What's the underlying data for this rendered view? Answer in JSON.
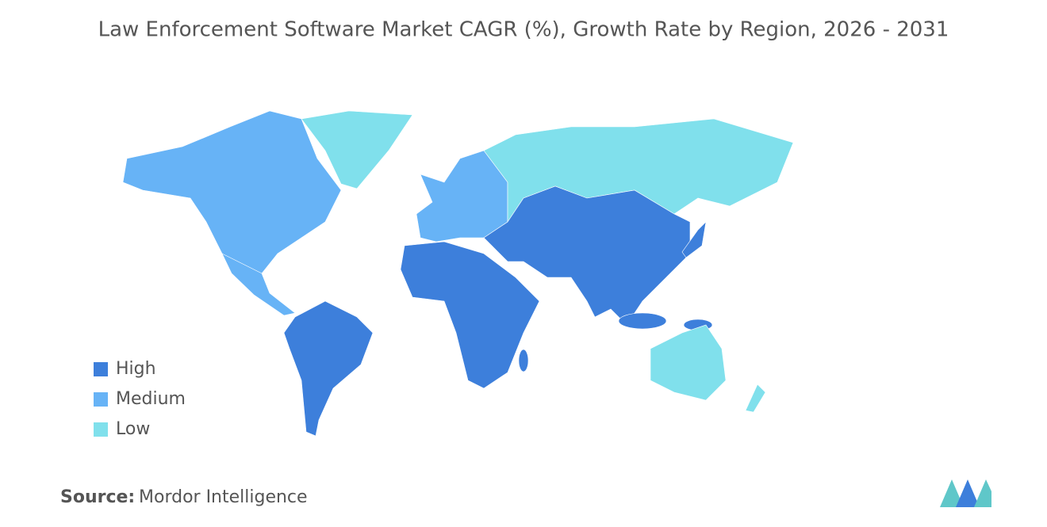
{
  "title": "Law Enforcement Software Market CAGR (%), Growth Rate by Region, 2026 - 2031",
  "legend": [
    {
      "label": "High",
      "color": "#3d7fdb"
    },
    {
      "label": "Medium",
      "color": "#67b3f6"
    },
    {
      "label": "Low",
      "color": "#80e0ec"
    }
  ],
  "source": {
    "label": "Source:",
    "text": "Mordor Intelligence"
  }
}
